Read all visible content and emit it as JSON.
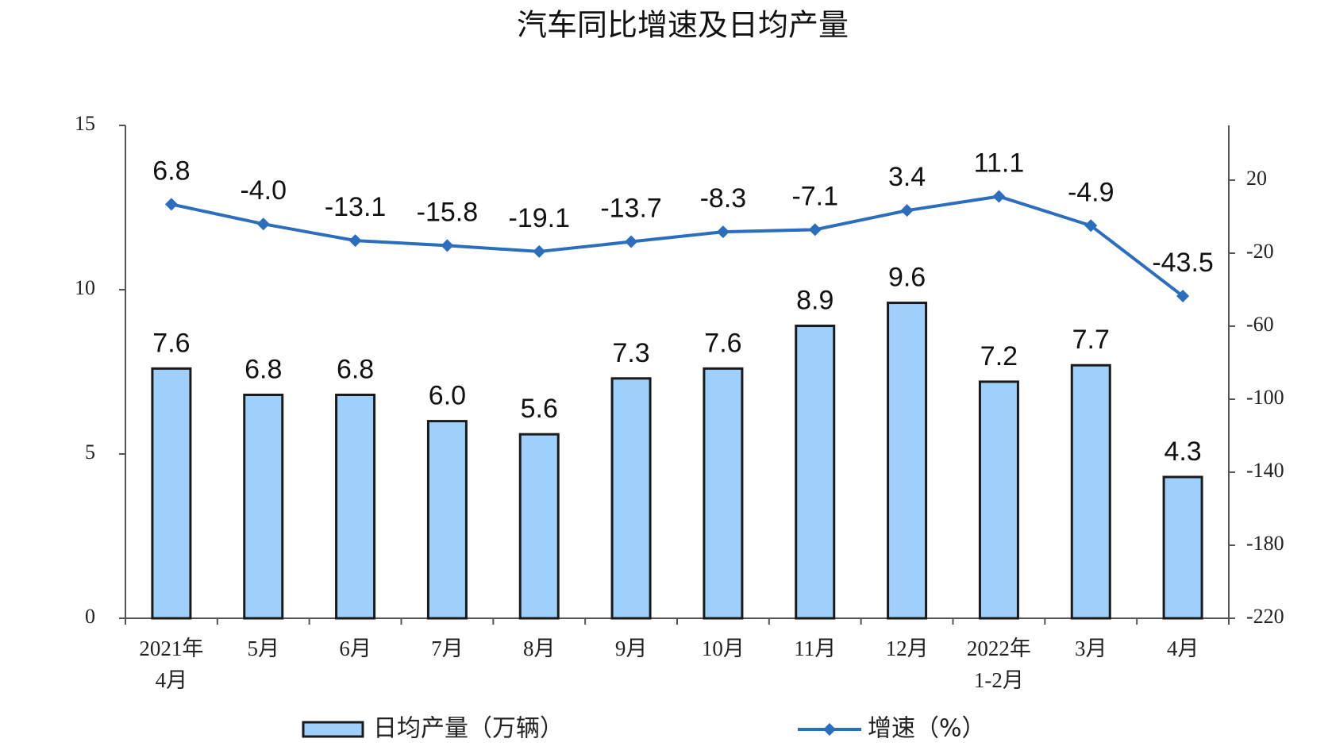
{
  "chart_data": {
    "type": "bar_line",
    "title": "汽车同比增速及日均产量",
    "categories": [
      "2021年\n4月",
      "5月",
      "6月",
      "7月",
      "8月",
      "9月",
      "10月",
      "11月",
      "12月",
      "2022年\n1-2月",
      "3月",
      "4月"
    ],
    "series": [
      {
        "name": "日均产量（万辆）",
        "type": "bar",
        "color": "#9fd0fb",
        "edge_color": "#1a1a1a",
        "values": [
          7.6,
          6.8,
          6.8,
          6.0,
          5.6,
          7.3,
          7.6,
          8.9,
          9.6,
          7.2,
          7.7,
          4.3
        ],
        "value_labels": [
          "7.6",
          "6.8",
          "6.8",
          "6.0",
          "5.6",
          "7.3",
          "7.6",
          "8.9",
          "9.6",
          "7.2",
          "7.7",
          "4.3"
        ]
      },
      {
        "name": "增速（%）",
        "type": "line",
        "axis": "y2",
        "color": "#2a6ebd",
        "values": [
          6.8,
          -4.0,
          -13.1,
          -15.8,
          -19.1,
          -13.7,
          -8.3,
          -7.1,
          3.4,
          11.1,
          -4.9,
          -43.5
        ],
        "value_labels": [
          "6.8",
          "-4.0",
          "-13.1",
          "-15.8",
          "-19.1",
          "-13.7",
          "-8.3",
          "-7.1",
          "3.4",
          "11.1",
          "-4.9",
          "-43.5"
        ]
      }
    ],
    "ylim": [
      0,
      15
    ],
    "yticks": [
      0,
      5,
      10,
      15
    ],
    "y2lim": [
      -220,
      50
    ],
    "y2ticks": [
      20,
      -20,
      -60,
      -100,
      -140,
      -180,
      -220
    ],
    "grid": false,
    "legend": "bottom"
  }
}
